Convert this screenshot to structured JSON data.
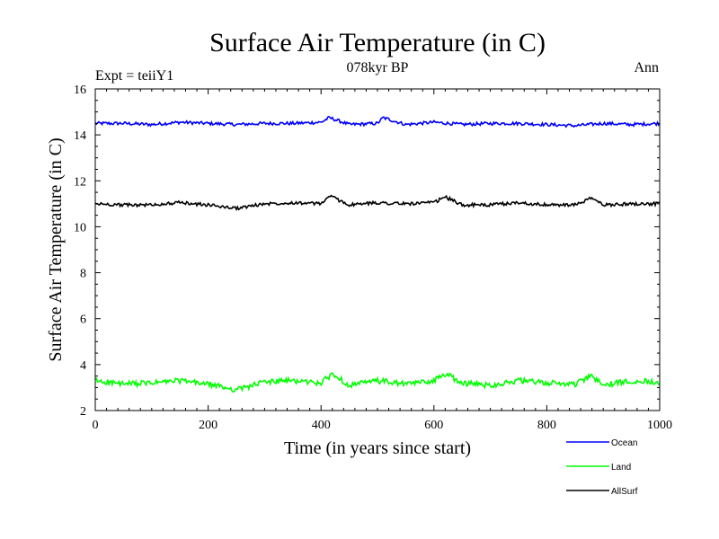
{
  "chart_data": {
    "type": "line",
    "title": "Surface Air Temperature (in C)",
    "subtitle": "078kyr BP",
    "left_label": "Expt = teiiY1",
    "right_label": "Ann",
    "xlabel": "Time (in years since start)",
    "ylabel": "Surface Air Temperature (in C)",
    "xlim": [
      0,
      1000
    ],
    "ylim": [
      2,
      16
    ],
    "xticks": [
      0,
      200,
      400,
      600,
      800,
      1000
    ],
    "yticks": [
      2,
      4,
      6,
      8,
      10,
      12,
      14,
      16
    ],
    "grid": false,
    "legend_position": "bottom-right",
    "series": [
      {
        "name": "Ocean",
        "color": "#0000ff",
        "x": [
          0,
          50,
          100,
          150,
          200,
          250,
          300,
          350,
          400,
          415,
          450,
          500,
          510,
          550,
          600,
          650,
          700,
          750,
          800,
          850,
          900,
          950,
          1000
        ],
        "y": [
          14.5,
          14.5,
          14.45,
          14.55,
          14.5,
          14.45,
          14.5,
          14.5,
          14.55,
          14.75,
          14.45,
          14.5,
          14.75,
          14.45,
          14.55,
          14.45,
          14.5,
          14.5,
          14.45,
          14.4,
          14.5,
          14.45,
          14.5
        ]
      },
      {
        "name": "Land",
        "color": "#00ff00",
        "x": [
          0,
          50,
          100,
          150,
          200,
          250,
          300,
          350,
          400,
          420,
          450,
          500,
          550,
          600,
          620,
          650,
          700,
          750,
          800,
          850,
          880,
          900,
          950,
          1000
        ],
        "y": [
          3.3,
          3.15,
          3.2,
          3.3,
          3.15,
          2.9,
          3.25,
          3.3,
          3.2,
          3.6,
          3.1,
          3.3,
          3.15,
          3.3,
          3.6,
          3.2,
          3.1,
          3.3,
          3.2,
          3.15,
          3.5,
          3.1,
          3.3,
          3.25
        ]
      },
      {
        "name": "AllSurf",
        "color": "#000000",
        "x": [
          0,
          50,
          100,
          150,
          200,
          250,
          300,
          350,
          400,
          415,
          450,
          500,
          550,
          600,
          620,
          650,
          700,
          750,
          800,
          850,
          880,
          900,
          950,
          1000
        ],
        "y": [
          11.0,
          10.95,
          10.95,
          11.05,
          10.95,
          10.8,
          11.0,
          11.05,
          11.0,
          11.35,
          10.95,
          11.05,
          11.0,
          11.05,
          11.3,
          10.95,
          10.95,
          11.05,
          10.95,
          10.95,
          11.25,
          10.95,
          11.0,
          11.0
        ]
      }
    ]
  }
}
